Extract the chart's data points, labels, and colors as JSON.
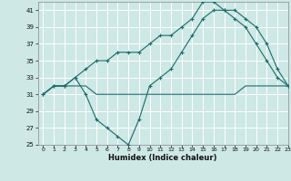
{
  "xlabel": "Humidex (Indice chaleur)",
  "bg_color": "#cde8e5",
  "grid_color": "#ffffff",
  "line_color": "#1a6b6b",
  "ylim": [
    25,
    42
  ],
  "xlim": [
    -0.5,
    23
  ],
  "yticks": [
    25,
    27,
    29,
    31,
    33,
    35,
    37,
    39,
    41
  ],
  "xticks": [
    0,
    1,
    2,
    3,
    4,
    5,
    6,
    7,
    8,
    9,
    10,
    11,
    12,
    13,
    14,
    15,
    16,
    17,
    18,
    19,
    20,
    21,
    22,
    23
  ],
  "series1_x": [
    0,
    1,
    2,
    3,
    4,
    5,
    6,
    7,
    8,
    9,
    10,
    11,
    12,
    13,
    14,
    15,
    16,
    17,
    18,
    19,
    20,
    21,
    22,
    23
  ],
  "series1_y": [
    31,
    32,
    32,
    32,
    32,
    31,
    31,
    31,
    31,
    31,
    31,
    31,
    31,
    31,
    31,
    31,
    31,
    31,
    31,
    32,
    32,
    32,
    32,
    32
  ],
  "series2_x": [
    0,
    1,
    2,
    3,
    4,
    5,
    6,
    7,
    8,
    9,
    10,
    11,
    12,
    13,
    14,
    15,
    16,
    17,
    18,
    19,
    20,
    21,
    22,
    23
  ],
  "series2_y": [
    31,
    32,
    32,
    33,
    31,
    28,
    27,
    26,
    25,
    28,
    32,
    33,
    34,
    36,
    38,
    40,
    41,
    41,
    40,
    39,
    37,
    35,
    33,
    32
  ],
  "series3_x": [
    0,
    1,
    2,
    3,
    4,
    5,
    6,
    7,
    8,
    9,
    10,
    11,
    12,
    13,
    14,
    15,
    16,
    17,
    18,
    19,
    20,
    21,
    22,
    23
  ],
  "series3_y": [
    31,
    32,
    32,
    33,
    34,
    35,
    35,
    36,
    36,
    36,
    37,
    38,
    38,
    39,
    40,
    42,
    42,
    41,
    41,
    40,
    39,
    37,
    34,
    32
  ]
}
